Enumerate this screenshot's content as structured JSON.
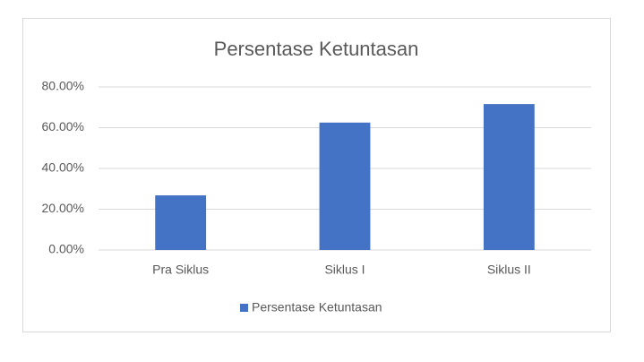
{
  "chart_data": {
    "type": "bar",
    "title": "Persentase Ketuntasan",
    "categories": [
      "Pra Siklus",
      "Siklus I",
      "Siklus II"
    ],
    "series": [
      {
        "name": "Persentase Ketuntasan",
        "color": "#4472c4",
        "values": [
          26.8,
          62.5,
          71.6
        ]
      }
    ],
    "ylim": [
      0,
      80
    ],
    "yticks": [
      {
        "value": 0,
        "label": "0.00%"
      },
      {
        "value": 20,
        "label": "20.00%"
      },
      {
        "value": 40,
        "label": "40.00%"
      },
      {
        "value": 60,
        "label": "60.00%"
      },
      {
        "value": 80,
        "label": "80.00%"
      }
    ],
    "grid": true,
    "legend": "bottom"
  }
}
